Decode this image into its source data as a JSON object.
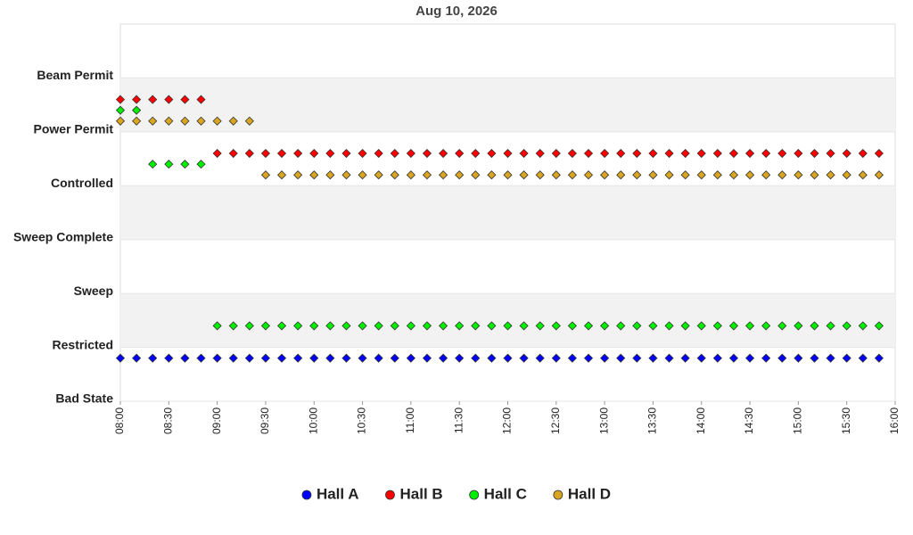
{
  "chart_data": {
    "type": "scatter",
    "title": "Aug 10, 2026",
    "x": [
      "08:00",
      "08:10",
      "08:20",
      "08:30",
      "08:40",
      "08:50",
      "09:00",
      "09:10",
      "09:20",
      "09:30",
      "09:40",
      "09:50",
      "10:00",
      "10:10",
      "10:20",
      "10:30",
      "10:40",
      "10:50",
      "11:00",
      "11:10",
      "11:20",
      "11:30",
      "11:40",
      "11:50",
      "12:00",
      "12:10",
      "12:20",
      "12:30",
      "12:40",
      "12:50",
      "13:00",
      "13:10",
      "13:20",
      "13:30",
      "13:40",
      "13:50",
      "14:00",
      "14:10",
      "14:20",
      "14:30",
      "14:40",
      "14:50",
      "15:00",
      "15:10",
      "15:20",
      "15:30",
      "15:40",
      "15:50"
    ],
    "xlim": [
      "08:00",
      "16:00"
    ],
    "xticks": [
      "08:00",
      "08:30",
      "09:00",
      "09:30",
      "10:00",
      "10:30",
      "11:00",
      "11:30",
      "12:00",
      "12:30",
      "13:00",
      "13:30",
      "14:00",
      "14:30",
      "15:00",
      "15:30",
      "16:00"
    ],
    "ylim": [
      0,
      7
    ],
    "yticks": [
      {
        "value": 0,
        "label": "Bad State"
      },
      {
        "value": 1,
        "label": "Restricted"
      },
      {
        "value": 2,
        "label": "Sweep"
      },
      {
        "value": 3,
        "label": "Sweep Complete"
      },
      {
        "value": 4,
        "label": "Controlled"
      },
      {
        "value": 5,
        "label": "Power Permit"
      },
      {
        "value": 6,
        "label": "Beam Permit"
      }
    ],
    "bands": true,
    "series": [
      {
        "name": "Hall A",
        "color": "#0000ff",
        "values": [
          0.8,
          0.8,
          0.8,
          0.8,
          0.8,
          0.8,
          0.8,
          0.8,
          0.8,
          0.8,
          0.8,
          0.8,
          0.8,
          0.8,
          0.8,
          0.8,
          0.8,
          0.8,
          0.8,
          0.8,
          0.8,
          0.8,
          0.8,
          0.8,
          0.8,
          0.8,
          0.8,
          0.8,
          0.8,
          0.8,
          0.8,
          0.8,
          0.8,
          0.8,
          0.8,
          0.8,
          0.8,
          0.8,
          0.8,
          0.8,
          0.8,
          0.8,
          0.8,
          0.8,
          0.8,
          0.8,
          0.8,
          0.8
        ]
      },
      {
        "name": "Hall B",
        "color": "#ff0000",
        "values": [
          5.6,
          5.6,
          5.6,
          5.6,
          5.6,
          5.6,
          4.6,
          4.6,
          4.6,
          4.6,
          4.6,
          4.6,
          4.6,
          4.6,
          4.6,
          4.6,
          4.6,
          4.6,
          4.6,
          4.6,
          4.6,
          4.6,
          4.6,
          4.6,
          4.6,
          4.6,
          4.6,
          4.6,
          4.6,
          4.6,
          4.6,
          4.6,
          4.6,
          4.6,
          4.6,
          4.6,
          4.6,
          4.6,
          4.6,
          4.6,
          4.6,
          4.6,
          4.6,
          4.6,
          4.6,
          4.6,
          4.6,
          4.6
        ]
      },
      {
        "name": "Hall C",
        "color": "#00ee00",
        "values": [
          5.4,
          5.4,
          4.4,
          4.4,
          4.4,
          4.4,
          1.4,
          1.4,
          1.4,
          1.4,
          1.4,
          1.4,
          1.4,
          1.4,
          1.4,
          1.4,
          1.4,
          1.4,
          1.4,
          1.4,
          1.4,
          1.4,
          1.4,
          1.4,
          1.4,
          1.4,
          1.4,
          1.4,
          1.4,
          1.4,
          1.4,
          1.4,
          1.4,
          1.4,
          1.4,
          1.4,
          1.4,
          1.4,
          1.4,
          1.4,
          1.4,
          1.4,
          1.4,
          1.4,
          1.4,
          1.4,
          1.4,
          1.4
        ]
      },
      {
        "name": "Hall D",
        "color": "#daa520",
        "values": [
          5.2,
          5.2,
          5.2,
          5.2,
          5.2,
          5.2,
          5.2,
          5.2,
          5.2,
          4.2,
          4.2,
          4.2,
          4.2,
          4.2,
          4.2,
          4.2,
          4.2,
          4.2,
          4.2,
          4.2,
          4.2,
          4.2,
          4.2,
          4.2,
          4.2,
          4.2,
          4.2,
          4.2,
          4.2,
          4.2,
          4.2,
          4.2,
          4.2,
          4.2,
          4.2,
          4.2,
          4.2,
          4.2,
          4.2,
          4.2,
          4.2,
          4.2,
          4.2,
          4.2,
          4.2,
          4.2,
          4.2,
          4.2
        ]
      }
    ]
  }
}
